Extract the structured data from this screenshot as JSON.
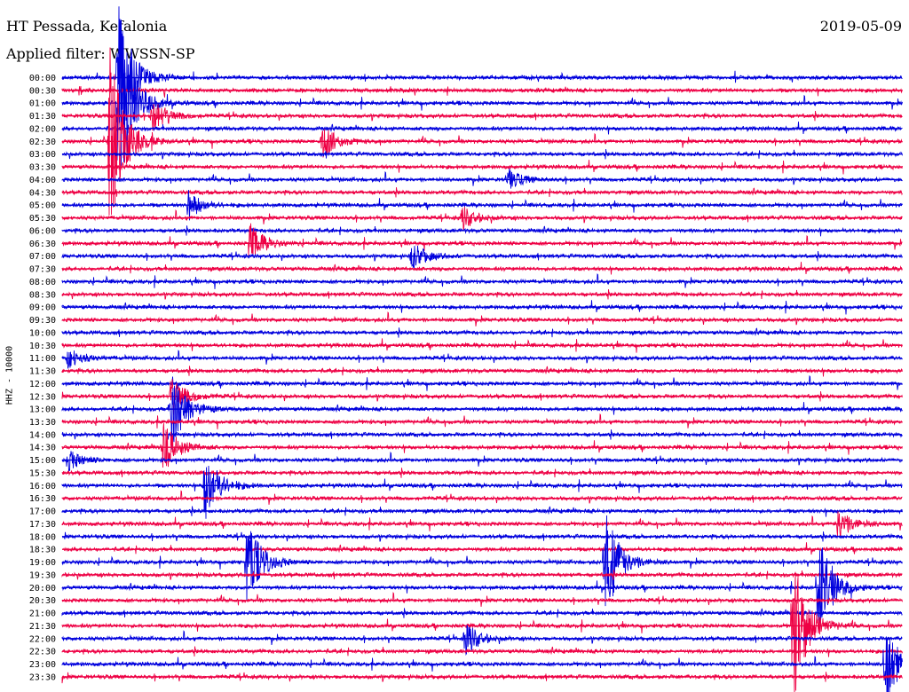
{
  "header": {
    "station": "HT Pessada, Kefalonia",
    "filter": "Applied filter: WWSSN-SP",
    "date": "2019-05-09"
  },
  "chart_data": {
    "type": "line",
    "channel_label": "HHZ - 10000",
    "ylabel": "HHZ - 10000",
    "colors": {
      "even_hour": "#0000dd",
      "half_hour": "#ee0044"
    },
    "rows": [
      "00:00",
      "00:30",
      "01:00",
      "01:30",
      "02:00",
      "02:30",
      "03:00",
      "03:30",
      "04:00",
      "04:30",
      "05:00",
      "05:30",
      "06:00",
      "06:30",
      "07:00",
      "07:30",
      "08:00",
      "08:30",
      "09:00",
      "09:30",
      "10:00",
      "10:30",
      "11:00",
      "11:30",
      "12:00",
      "12:30",
      "13:00",
      "13:30",
      "14:00",
      "14:30",
      "15:00",
      "15:30",
      "16:00",
      "16:30",
      "17:00",
      "17:30",
      "18:00",
      "18:30",
      "19:00",
      "19:30",
      "20:00",
      "20:30",
      "21:00",
      "21:30",
      "22:00",
      "22:30",
      "23:00",
      "23:30"
    ],
    "events_minutes_amplitude": [
      {
        "row": 0,
        "minute": 2.0,
        "amp": 90
      },
      {
        "row": 2,
        "minute": 2.0,
        "amp": 115
      },
      {
        "row": 3,
        "minute": 3.2,
        "amp": 20
      },
      {
        "row": 5,
        "minute": 1.7,
        "amp": 110
      },
      {
        "row": 5,
        "minute": 9.3,
        "amp": 20
      },
      {
        "row": 8,
        "minute": 15.9,
        "amp": 12
      },
      {
        "row": 10,
        "minute": 4.5,
        "amp": 15
      },
      {
        "row": 11,
        "minute": 14.3,
        "amp": 12
      },
      {
        "row": 13,
        "minute": 6.7,
        "amp": 22
      },
      {
        "row": 14,
        "minute": 12.5,
        "amp": 15
      },
      {
        "row": 22,
        "minute": 0.2,
        "amp": 12
      },
      {
        "row": 25,
        "minute": 3.9,
        "amp": 22
      },
      {
        "row": 26,
        "minute": 3.9,
        "amp": 45
      },
      {
        "row": 29,
        "minute": 3.6,
        "amp": 30
      },
      {
        "row": 30,
        "minute": 0.2,
        "amp": 12
      },
      {
        "row": 32,
        "minute": 5.1,
        "amp": 40
      },
      {
        "row": 35,
        "minute": 27.7,
        "amp": 20
      },
      {
        "row": 38,
        "minute": 6.6,
        "amp": 52
      },
      {
        "row": 38,
        "minute": 19.4,
        "amp": 70
      },
      {
        "row": 40,
        "minute": 27.0,
        "amp": 62
      },
      {
        "row": 43,
        "minute": 26.1,
        "amp": 90
      },
      {
        "row": 44,
        "minute": 14.4,
        "amp": 18
      },
      {
        "row": 46,
        "minute": 29.4,
        "amp": 50
      }
    ]
  }
}
